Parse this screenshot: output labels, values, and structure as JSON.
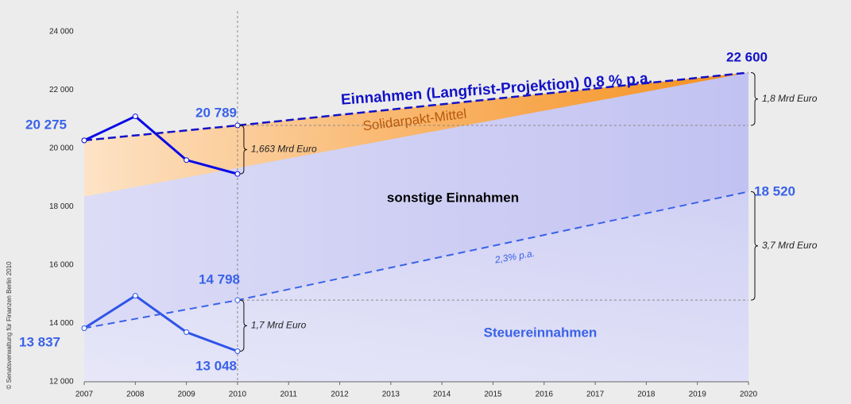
{
  "chart_data": {
    "type": "line",
    "xlim": [
      2007,
      2020
    ],
    "xticks": [
      2007,
      2008,
      2009,
      2010,
      2011,
      2012,
      2013,
      2014,
      2015,
      2016,
      2017,
      2018,
      2019,
      2020
    ],
    "ylim": [
      12000,
      24000
    ],
    "yticks": [
      {
        "value": 12000,
        "label": "12 000"
      },
      {
        "value": 14000,
        "label": "14 000"
      },
      {
        "value": 16000,
        "label": "16 000"
      },
      {
        "value": 18000,
        "label": "18 000"
      },
      {
        "value": 20000,
        "label": "20 000"
      },
      {
        "value": 22000,
        "label": "22 000"
      },
      {
        "value": 24000,
        "label": "24 000"
      }
    ],
    "series": [
      {
        "color": "#0a0ae6",
        "style": "solid",
        "x": [
          2007,
          2008,
          2009,
          2010
        ],
        "values": [
          20275,
          21100,
          19600,
          19126
        ]
      },
      {
        "color": "#1212c8",
        "style": "dashed",
        "x": [
          2007,
          2010,
          2020
        ],
        "values": [
          20275,
          20789,
          22600
        ],
        "value_labels": [
          "20 275",
          "20 789",
          "22 600"
        ]
      },
      {
        "color": "#2f55e6",
        "style": "solid",
        "x": [
          2007,
          2008,
          2009,
          2010
        ],
        "values": [
          13837,
          14950,
          13700,
          13048
        ],
        "value_labels": [
          null,
          null,
          null,
          "13 048"
        ]
      },
      {
        "color": "#3a62e8",
        "style": "dashed",
        "x": [
          2007,
          2010,
          2020
        ],
        "values": [
          13837,
          14798,
          18520
        ],
        "value_labels": [
          "13 837",
          "14 798",
          "18 520"
        ]
      }
    ],
    "solidarpakt_base": {
      "x": [
        2007,
        2020
      ],
      "values": [
        18350,
        22600
      ]
    },
    "reference_x": 2010,
    "braces": [
      {
        "text": "1,663 Mrd Euro",
        "x": 2010,
        "from": 20789,
        "to": 19126
      },
      {
        "text": "1,7 Mrd Euro",
        "x": 2010,
        "from": 14798,
        "to": 13048
      },
      {
        "text": "1,8 Mrd Euro",
        "x": 2020,
        "from": 22600,
        "to": 20789
      },
      {
        "text": "3,7 Mrd Euro",
        "x": 2020,
        "from": 18520,
        "to": 14798
      }
    ],
    "labels": [
      "Einnahmen (Langfrist-Projektion) 0,8 % p.a.",
      "Solidarpakt-Mittel",
      "sonstige Einnahmen",
      "Steuereinnahmen",
      "2,3% p.a."
    ],
    "source": "© Senatsverwaltung für Finanzen Berlin 2010"
  }
}
